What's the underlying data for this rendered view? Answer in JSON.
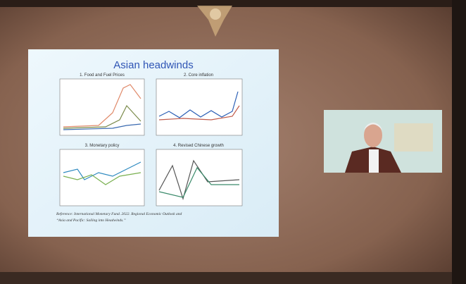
{
  "slide": {
    "title": "Asian headwinds",
    "panels": [
      "1. Food and Fuel Prices",
      "2. Core inflation",
      "3. Monetary policy",
      "4. Revised Chinese growth"
    ],
    "reference": [
      "Reference: International Monetary Fund. 2022. Regional Economic Outlook and",
      "“Asia and Pacific: Sailing into Headwinds.”"
    ]
  }
}
